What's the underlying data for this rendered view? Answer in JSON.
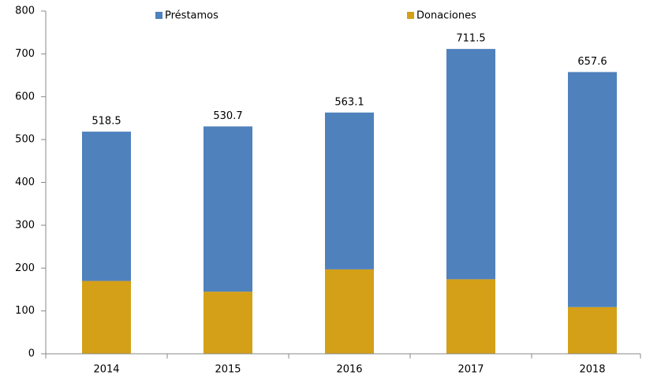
{
  "chart_data": {
    "type": "stacked_bar",
    "categories": [
      "2014",
      "2015",
      "2016",
      "2017",
      "2018"
    ],
    "series": [
      {
        "name": "Donaciones",
        "color": "#d4a017",
        "values": [
          170,
          145,
          197,
          174,
          109
        ]
      },
      {
        "name": "Préstamos",
        "color": "#4f81bd",
        "values": [
          348.5,
          385.7,
          366.1,
          537.5,
          548.6
        ]
      }
    ],
    "totals": [
      518.5,
      530.7,
      563.1,
      711.5,
      657.6
    ],
    "ylim": [
      0,
      800
    ],
    "yticks": [
      0,
      100,
      200,
      300,
      400,
      500,
      600,
      700,
      800
    ],
    "legend": "top"
  }
}
